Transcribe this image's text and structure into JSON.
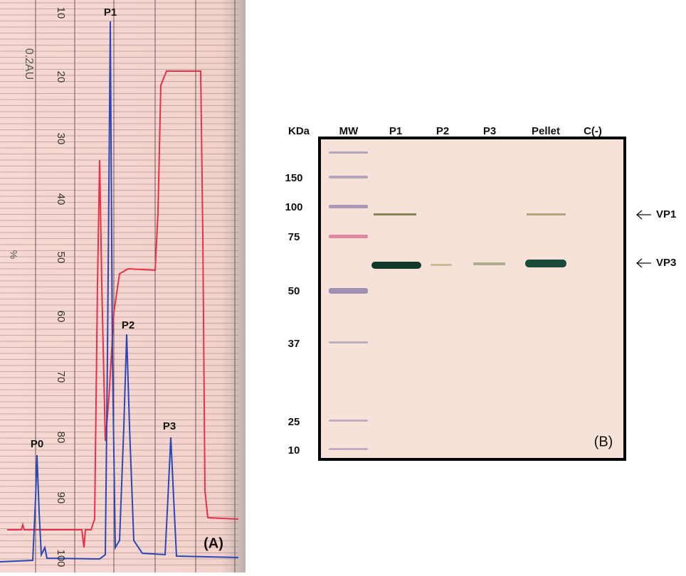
{
  "panel_a": {
    "label": "(A)",
    "scale_note": "0.2AU",
    "unit": "%",
    "scale_labels": [
      "10",
      "20",
      "30",
      "40",
      "50",
      "60",
      "70",
      "80",
      "90",
      "100"
    ],
    "peaks": [
      "P0",
      "P1",
      "P2",
      "P3"
    ]
  },
  "panel_b": {
    "label": "(B)",
    "size_unit": "KDa",
    "lanes": [
      "MW",
      "P1",
      "P2",
      "P3",
      "Pellet",
      "C(-)"
    ],
    "markers": [
      "150",
      "100",
      "75",
      "50",
      "37",
      "25",
      "10"
    ],
    "bands": [
      "VP1",
      "VP3"
    ]
  }
}
